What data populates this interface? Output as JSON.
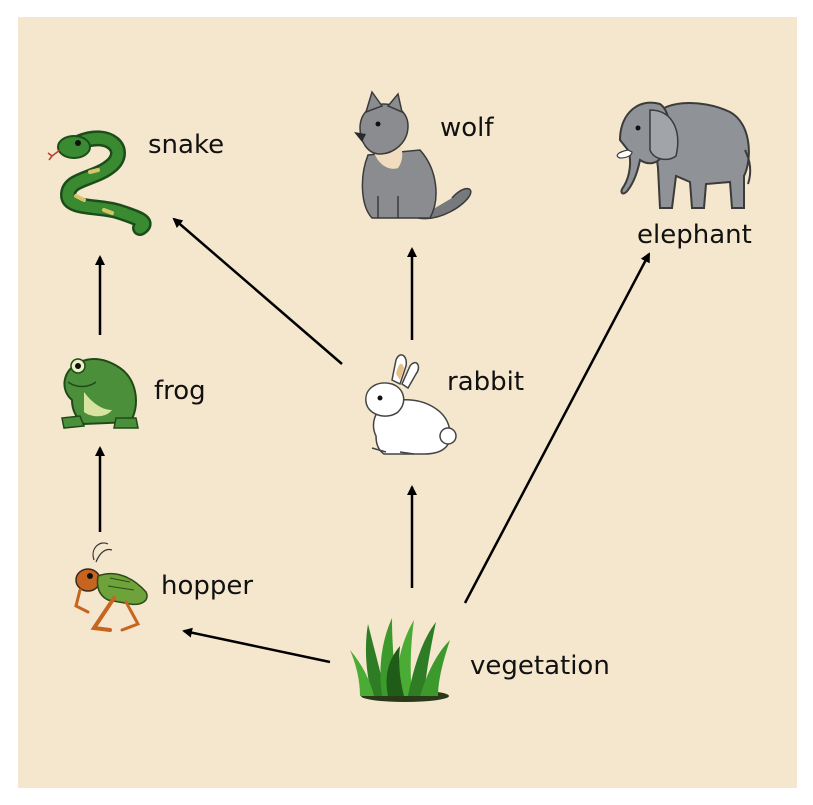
{
  "organisms": {
    "snake": "snake",
    "wolf": "wolf",
    "elephant": "elephant",
    "frog": "frog",
    "rabbit": "rabbit",
    "hopper": "hopper",
    "vegetation": "vegetation"
  },
  "icons": {
    "snake": "snake-icon",
    "wolf": "wolf-icon",
    "elephant": "elephant-icon",
    "frog": "frog-icon",
    "rabbit": "rabbit-icon",
    "hopper": "grasshopper-icon",
    "vegetation": "grass-icon"
  },
  "arrows": [
    {
      "from": "vegetation",
      "to": "hopper"
    },
    {
      "from": "vegetation",
      "to": "rabbit"
    },
    {
      "from": "vegetation",
      "to": "elephant"
    },
    {
      "from": "hopper",
      "to": "frog"
    },
    {
      "from": "frog",
      "to": "snake"
    },
    {
      "from": "rabbit",
      "to": "snake"
    },
    {
      "from": "rabbit",
      "to": "wolf"
    }
  ],
  "colors": {
    "background": "#f5e7cd",
    "arrow": "#000000"
  }
}
